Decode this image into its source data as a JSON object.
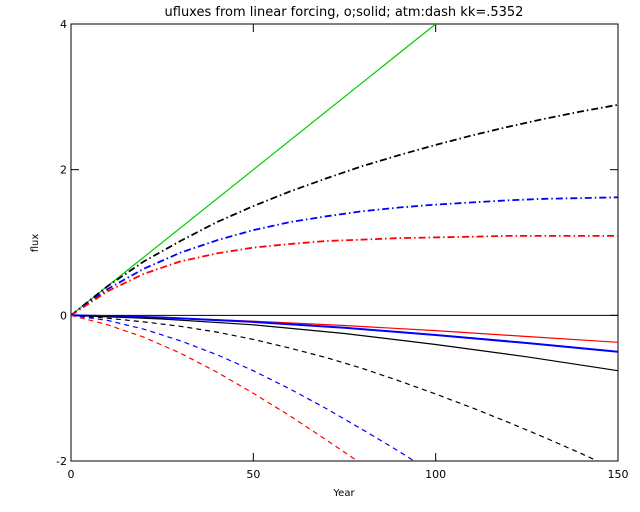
{
  "chart_data": {
    "type": "line",
    "title": "ufluxes from linear forcing, o;solid; atm:dash kk=.5352",
    "xlabel": "Year",
    "ylabel": "flux",
    "xlim": [
      0,
      150
    ],
    "ylim": [
      -2,
      4
    ],
    "xticks": [
      0,
      50,
      100,
      150
    ],
    "yticks": [
      -2,
      0,
      2,
      4
    ],
    "zero_line": true,
    "grid": false,
    "series": [
      {
        "color": "#00cc00",
        "style": "solid",
        "x": [
          0,
          100
        ],
        "y": [
          0,
          4.0
        ]
      },
      {
        "color": "#000000",
        "style": "dashdot",
        "x": [
          0,
          10,
          20,
          30,
          40,
          50,
          60,
          70,
          80,
          90,
          100,
          110,
          120,
          130,
          140,
          150
        ],
        "y": [
          0,
          0.4,
          0.74,
          1.02,
          1.28,
          1.5,
          1.7,
          1.88,
          2.05,
          2.2,
          2.34,
          2.47,
          2.59,
          2.7,
          2.8,
          2.89
        ]
      },
      {
        "color": "#0000ff",
        "style": "dashdot",
        "x": [
          0,
          10,
          20,
          30,
          40,
          50,
          60,
          70,
          80,
          90,
          100,
          110,
          120,
          130,
          140,
          150
        ],
        "y": [
          0,
          0.36,
          0.64,
          0.86,
          1.03,
          1.17,
          1.28,
          1.36,
          1.43,
          1.48,
          1.52,
          1.55,
          1.58,
          1.6,
          1.61,
          1.62
        ]
      },
      {
        "color": "#ff0000",
        "style": "dashdot",
        "x": [
          0,
          10,
          20,
          30,
          40,
          50,
          60,
          70,
          80,
          90,
          100,
          110,
          120,
          130,
          140,
          150
        ],
        "y": [
          0,
          0.33,
          0.57,
          0.74,
          0.85,
          0.93,
          0.98,
          1.02,
          1.04,
          1.06,
          1.07,
          1.08,
          1.09,
          1.09,
          1.09,
          1.09
        ]
      },
      {
        "color": "#ff0000",
        "style": "solid",
        "x": [
          0,
          25,
          50,
          75,
          100,
          125,
          150
        ],
        "y": [
          0,
          -0.03,
          -0.08,
          -0.14,
          -0.21,
          -0.29,
          -0.37
        ]
      },
      {
        "color": "#0000ff",
        "style": "solid",
        "bold": true,
        "x": [
          0,
          25,
          50,
          75,
          100,
          125,
          150
        ],
        "y": [
          0,
          -0.03,
          -0.09,
          -0.17,
          -0.27,
          -0.38,
          -0.5
        ]
      },
      {
        "color": "#000000",
        "style": "solid",
        "x": [
          0,
          25,
          50,
          75,
          100,
          125,
          150
        ],
        "y": [
          0,
          -0.05,
          -0.13,
          -0.25,
          -0.4,
          -0.57,
          -0.76
        ]
      },
      {
        "color": "#000000",
        "style": "dash",
        "x": [
          0,
          10,
          20,
          30,
          40,
          50,
          60,
          70,
          80,
          90,
          100,
          110,
          120,
          130,
          140,
          150
        ],
        "y": [
          0,
          -0.04,
          -0.09,
          -0.15,
          -0.23,
          -0.33,
          -0.45,
          -0.58,
          -0.73,
          -0.9,
          -1.08,
          -1.27,
          -1.47,
          -1.68,
          -1.9,
          -2.13
        ]
      },
      {
        "color": "#0000ff",
        "style": "dash",
        "x": [
          0,
          10,
          20,
          30,
          40,
          50,
          60,
          70,
          80,
          90,
          95
        ],
        "y": [
          0,
          -0.07,
          -0.19,
          -0.35,
          -0.54,
          -0.76,
          -1.01,
          -1.28,
          -1.57,
          -1.87,
          -2.03
        ]
      },
      {
        "color": "#ff0000",
        "style": "dash",
        "x": [
          0,
          10,
          20,
          30,
          40,
          50,
          60,
          70,
          80
        ],
        "y": [
          0,
          -0.13,
          -0.3,
          -0.52,
          -0.78,
          -1.07,
          -1.38,
          -1.71,
          -2.05
        ]
      }
    ]
  }
}
